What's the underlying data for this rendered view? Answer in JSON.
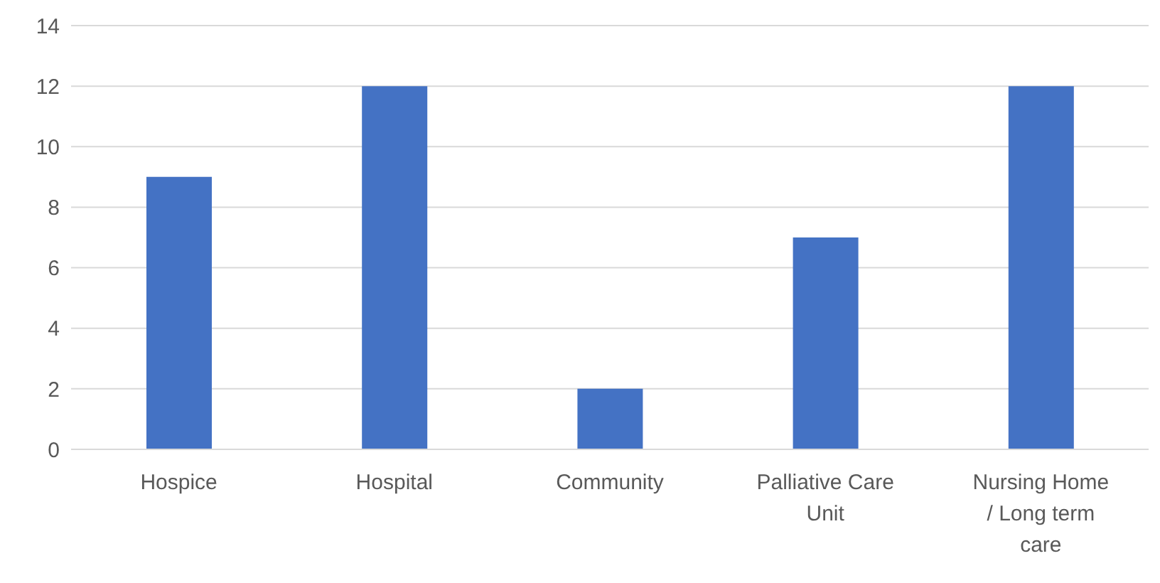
{
  "chart_data": {
    "type": "bar",
    "categories": [
      "Hospice",
      "Hospital",
      "Community",
      "Palliative Care Unit",
      "Nursing Home / Long term care"
    ],
    "values": [
      9,
      12,
      2,
      7,
      12
    ],
    "color": "#4472c4",
    "ylim": [
      0,
      14
    ],
    "yticks": [
      0,
      2,
      4,
      6,
      8,
      10,
      12,
      14
    ],
    "grid": "y"
  }
}
